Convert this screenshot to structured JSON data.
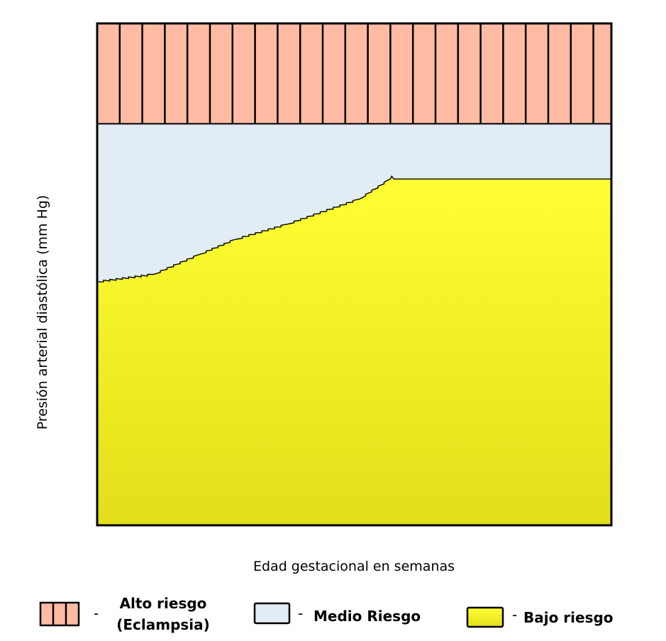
{
  "chart_data": {
    "type": "area",
    "title": "",
    "xlabel": "Edad gestacional en semanas",
    "ylabel": "Presión arterial diastólica (mm Hg)",
    "xlim": [
      0,
      100
    ],
    "ylim": [
      0,
      100
    ],
    "grid": false,
    "legend_position": "bottom",
    "regions": [
      {
        "name": "Alto riesgo",
        "sublabel": "(Eclampsia)",
        "color": "#ffbba4",
        "pattern": "vertical-stripes"
      },
      {
        "name": "Medio Riesgo",
        "color": "#e1ecf4"
      },
      {
        "name": "Bajo riesgo",
        "color_top": "#ffff33",
        "color_bottom": "#e2de1a"
      }
    ],
    "alto_lower_bound": 80,
    "boundary_bajo_medio": {
      "x": [
        0,
        11,
        20,
        27,
        37,
        51,
        57,
        100
      ],
      "y": [
        48.5,
        50,
        54,
        57,
        60,
        65,
        69,
        69
      ]
    }
  }
}
